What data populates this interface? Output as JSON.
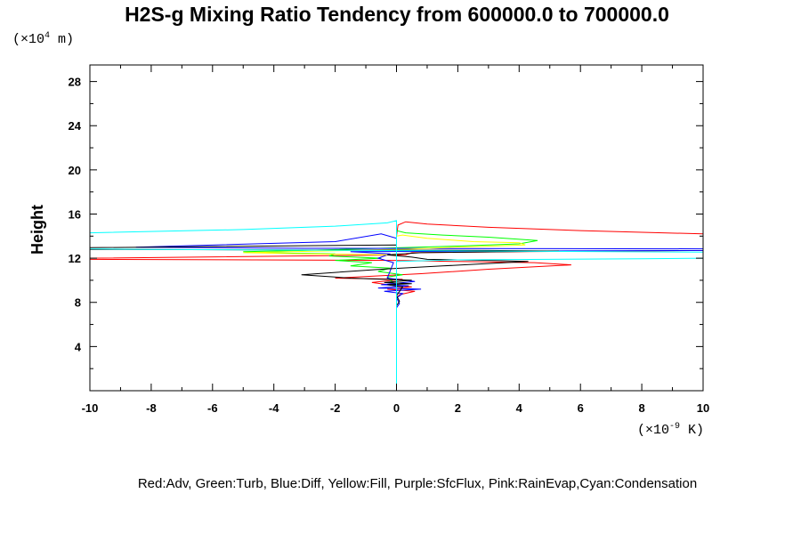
{
  "chart_data": {
    "type": "line",
    "title": "H2S-g Mixing Ratio Tendency from 600000.0 to 700000.0",
    "ylabel": "Height",
    "y_unit": {
      "prefix": "(×10",
      "exp": "4",
      "suffix": " m)"
    },
    "x_unit": {
      "prefix": "(×10",
      "exp": "-9",
      "suffix": " K)"
    },
    "xlim": [
      -10,
      10
    ],
    "ylim": [
      0,
      29.5
    ],
    "x_ticks": [
      "-10",
      "-8",
      "-6",
      "-4",
      "-2",
      "0",
      "2",
      "4",
      "6",
      "8",
      "10"
    ],
    "y_ticks": [
      "4",
      "8",
      "12",
      "16",
      "20",
      "24",
      "28"
    ],
    "legend_text": "Red:Adv, Green:Turb, Blue:Diff, Yellow:Fill, Purple:SfcFlux, Pink:RainEvap,Cyan:Condensation",
    "series": [
      {
        "color": "#ff0000",
        "points": [
          [
            0,
            0
          ],
          [
            0,
            14
          ],
          [
            0.05,
            15
          ],
          [
            0.3,
            15.3
          ],
          [
            1,
            15.1
          ],
          [
            3,
            14.8
          ],
          [
            6,
            14.5
          ],
          [
            10,
            14.2
          ],
          [
            10,
            12.7
          ],
          [
            4,
            12.6
          ],
          [
            0.5,
            12.5
          ],
          [
            0.3,
            12.3
          ],
          [
            -10,
            12
          ],
          [
            -10,
            11.9
          ],
          [
            0,
            11.8
          ],
          [
            2,
            11.7
          ],
          [
            4.5,
            11.6
          ],
          [
            5.7,
            11.4
          ],
          [
            3,
            11
          ],
          [
            0.8,
            10.6
          ],
          [
            -2,
            10.2
          ],
          [
            0.2,
            10.1
          ],
          [
            -0.8,
            9.8
          ],
          [
            0,
            9.5
          ],
          [
            0.5,
            9.4
          ],
          [
            -0.3,
            9.2
          ],
          [
            0.6,
            9
          ],
          [
            0.1,
            8.7
          ],
          [
            0,
            8.4
          ],
          [
            0,
            0
          ]
        ]
      },
      {
        "color": "#00ff00",
        "points": [
          [
            0,
            0
          ],
          [
            0,
            14.5
          ],
          [
            0.3,
            14.3
          ],
          [
            1.5,
            14.1
          ],
          [
            3,
            13.9
          ],
          [
            4.6,
            13.6
          ],
          [
            4,
            13.3
          ],
          [
            2,
            13.1
          ],
          [
            -3,
            12.7
          ],
          [
            -5,
            12.6
          ],
          [
            -4.5,
            12.5
          ],
          [
            -2,
            12.4
          ],
          [
            -2.2,
            12.2
          ],
          [
            -0.5,
            12
          ],
          [
            -2,
            11.8
          ],
          [
            -0.8,
            11.6
          ],
          [
            -1.5,
            11.3
          ],
          [
            -0.2,
            11.1
          ],
          [
            -0.6,
            10.8
          ],
          [
            0.2,
            10.5
          ],
          [
            -0.3,
            10.3
          ],
          [
            0,
            9.5
          ],
          [
            0,
            0
          ]
        ]
      },
      {
        "color": "#0000ff",
        "points": [
          [
            0,
            0
          ],
          [
            0,
            13.8
          ],
          [
            -0.5,
            14.2
          ],
          [
            -2,
            13.5
          ],
          [
            -8.5,
            13
          ],
          [
            -3,
            12.9
          ],
          [
            10,
            12.85
          ],
          [
            10,
            12.7
          ],
          [
            -1.5,
            12.6
          ],
          [
            -0.2,
            12.4
          ],
          [
            -0.6,
            12
          ],
          [
            -0.1,
            11.6
          ],
          [
            -0.3,
            10.2
          ],
          [
            0.6,
            9.9
          ],
          [
            -0.5,
            9.6
          ],
          [
            0.4,
            9.5
          ],
          [
            -0.6,
            9.3
          ],
          [
            0.8,
            9.2
          ],
          [
            -0.4,
            9
          ],
          [
            0.2,
            8.8
          ],
          [
            0,
            8.4
          ],
          [
            0.1,
            7.9
          ],
          [
            0,
            7.5
          ],
          [
            0,
            0
          ]
        ]
      },
      {
        "color": "#ffff00",
        "points": [
          [
            0,
            0
          ],
          [
            0,
            14
          ],
          [
            0.2,
            14.1
          ],
          [
            1,
            13.8
          ],
          [
            2.5,
            13.5
          ],
          [
            4,
            13.4
          ],
          [
            4.2,
            13.2
          ],
          [
            2,
            13
          ],
          [
            0.2,
            12.8
          ],
          [
            -5,
            12.5
          ],
          [
            -3,
            12.4
          ],
          [
            0,
            12.3
          ],
          [
            0,
            11.5
          ],
          [
            0,
            0
          ]
        ]
      },
      {
        "color": "#000000",
        "points": [
          [
            0,
            0
          ],
          [
            0,
            13.2
          ],
          [
            -10,
            12.95
          ],
          [
            -10,
            12.8
          ],
          [
            3,
            12.7
          ],
          [
            5.3,
            12.65
          ],
          [
            0.8,
            12.5
          ],
          [
            -0.3,
            12.3
          ],
          [
            0.5,
            12.1
          ],
          [
            1,
            11.9
          ],
          [
            3,
            11.8
          ],
          [
            4.3,
            11.7
          ],
          [
            1.5,
            11.3
          ],
          [
            -0.5,
            11
          ],
          [
            -3.1,
            10.5
          ],
          [
            -1.5,
            10.2
          ],
          [
            0.5,
            10
          ],
          [
            -0.4,
            9.8
          ],
          [
            0.5,
            9.7
          ],
          [
            -0.3,
            9.6
          ],
          [
            0.2,
            9.4
          ],
          [
            0,
            8.6
          ],
          [
            0.1,
            8.1
          ],
          [
            0,
            7.7
          ],
          [
            0,
            0
          ]
        ]
      },
      {
        "color": "#00ffff",
        "points": [
          [
            0,
            0
          ],
          [
            0,
            15.4
          ],
          [
            -0.3,
            15.2
          ],
          [
            -2,
            14.9
          ],
          [
            -5,
            14.6
          ],
          [
            -10,
            14.3
          ],
          [
            -10,
            12.85
          ],
          [
            -8,
            12.8
          ],
          [
            10,
            12.55
          ],
          [
            10,
            12
          ],
          [
            8,
            11.95
          ],
          [
            2,
            11.85
          ],
          [
            0,
            11.7
          ],
          [
            0,
            0
          ]
        ]
      }
    ]
  }
}
